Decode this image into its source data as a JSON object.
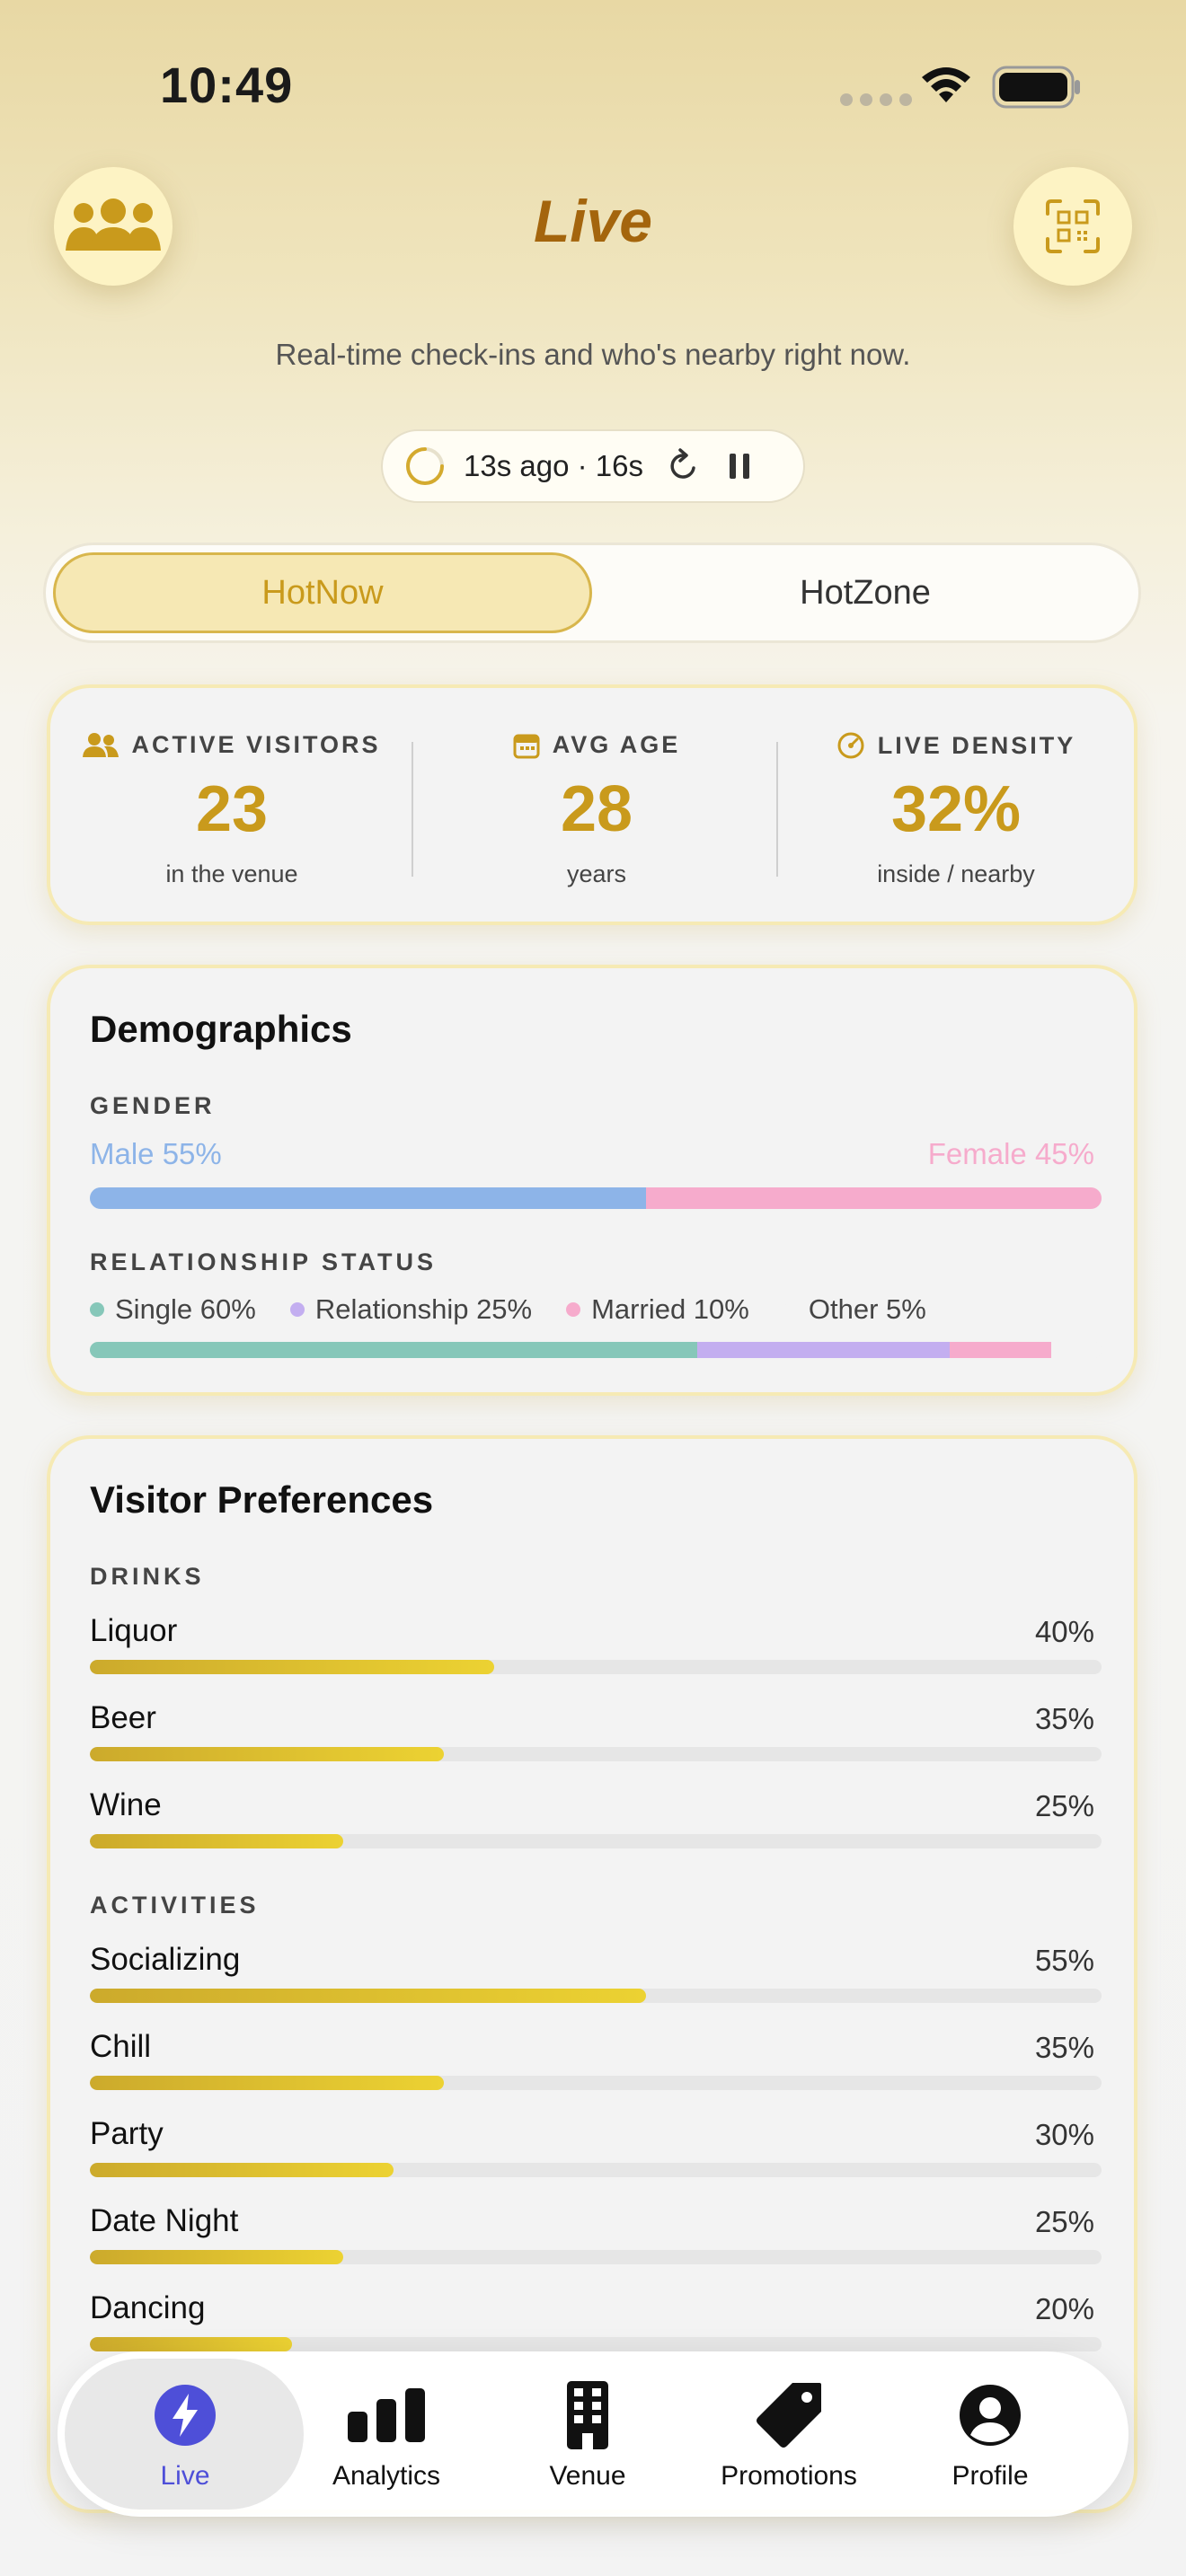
{
  "status_bar": {
    "time": "10:49"
  },
  "header": {
    "title": "Live",
    "subtitle": "Real-time check-ins and who's nearby right now.",
    "left_icon": "group-icon",
    "right_icon": "qr-scan-icon"
  },
  "refresh": {
    "text": "13s ago · 16s",
    "refresh_icon": "refresh-icon",
    "pause_icon": "pause-icon"
  },
  "segment": {
    "active": "HotNow",
    "inactive": "HotZone"
  },
  "stats": [
    {
      "icon": "users-icon",
      "label": "ACTIVE VISITORS",
      "value": "23",
      "unit": "in the venue"
    },
    {
      "icon": "calendar-icon",
      "label": "AVG AGE",
      "value": "28",
      "unit": "years"
    },
    {
      "icon": "gauge-icon",
      "label": "LIVE DENSITY",
      "value": "32%",
      "unit": "inside / nearby"
    }
  ],
  "demographics": {
    "title": "Demographics",
    "gender_label": "GENDER",
    "male_label": "Male 55%",
    "female_label": "Female 45%",
    "male_fraction": 0.55,
    "female_fraction": 0.45,
    "relationship_label": "RELATIONSHIP STATUS",
    "relationship": [
      {
        "label": "Single 60%",
        "fraction": 0.6,
        "color": "#86c7b9"
      },
      {
        "label": "Relationship 25%",
        "fraction": 0.25,
        "color": "#c3aef0"
      },
      {
        "label": "Married 10%",
        "fraction": 0.1,
        "color": "#f6abcc"
      },
      {
        "label": "Other 5%",
        "fraction": 0.05,
        "color": "#f3f3f3"
      }
    ]
  },
  "preferences": {
    "title": "Visitor Preferences",
    "drinks_label": "DRINKS",
    "drinks": [
      {
        "name": "Liquor",
        "pct": "40%",
        "value": 0.4
      },
      {
        "name": "Beer",
        "pct": "35%",
        "value": 0.35
      },
      {
        "name": "Wine",
        "pct": "25%",
        "value": 0.25
      }
    ],
    "activities_label": "ACTIVITIES",
    "activities": [
      {
        "name": "Socializing",
        "pct": "55%",
        "value": 0.55
      },
      {
        "name": "Chill",
        "pct": "35%",
        "value": 0.35
      },
      {
        "name": "Party",
        "pct": "30%",
        "value": 0.3
      },
      {
        "name": "Date Night",
        "pct": "25%",
        "value": 0.25
      },
      {
        "name": "Dancing",
        "pct": "20%",
        "value": 0.2
      }
    ]
  },
  "colors": {
    "accent": "#c99a1c",
    "male": "#8db4e8",
    "female": "#f6abcc",
    "nav_active": "#4e4fd8"
  },
  "nav": [
    {
      "label": "Live",
      "icon": "bolt-icon",
      "active": true
    },
    {
      "label": "Analytics",
      "icon": "bar-chart-icon"
    },
    {
      "label": "Venue",
      "icon": "building-icon"
    },
    {
      "label": "Promotions",
      "icon": "tag-icon"
    },
    {
      "label": "Profile",
      "icon": "profile-icon"
    }
  ]
}
